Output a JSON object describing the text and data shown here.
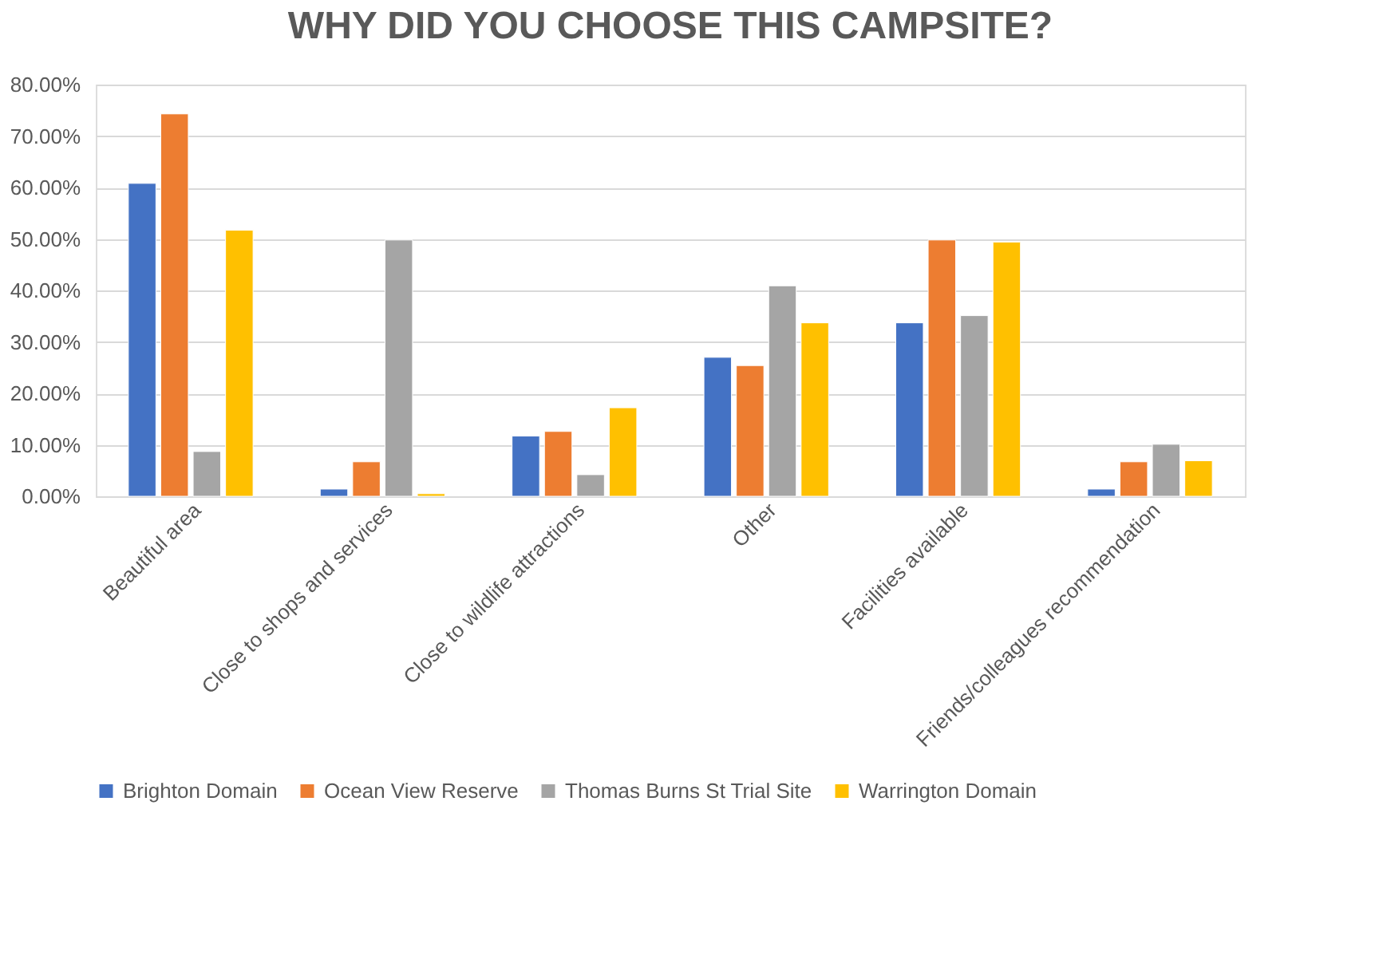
{
  "chart_data": {
    "type": "bar",
    "title": "WHY DID YOU CHOOSE THIS CAMPSITE?",
    "categories": [
      "Beautiful area",
      "Close to shops and services",
      "Close to wildlife attractions",
      "Other",
      "Facilities available",
      "Friends/colleagues recommendation"
    ],
    "series": [
      {
        "name": "Brighton Domain",
        "color": "#4472c4",
        "values": [
          60.8,
          1.4,
          11.7,
          27.0,
          33.7,
          1.4
        ]
      },
      {
        "name": "Ocean View Reserve",
        "color": "#ed7d31",
        "values": [
          74.3,
          6.7,
          12.6,
          25.4,
          49.8,
          6.7
        ]
      },
      {
        "name": "Thomas Burns St Trial Site",
        "color": "#a5a5a5",
        "values": [
          8.7,
          49.8,
          4.2,
          40.9,
          35.1,
          10.1
        ]
      },
      {
        "name": "Warrington Domain",
        "color": "#ffc000",
        "values": [
          51.7,
          0.5,
          17.2,
          33.7,
          49.4,
          6.9
        ]
      }
    ],
    "ylim": [
      0,
      80
    ],
    "yticks": [
      {
        "value": 0,
        "label": "0.00%"
      },
      {
        "value": 10,
        "label": "10.00%"
      },
      {
        "value": 20,
        "label": "20.00%"
      },
      {
        "value": 30,
        "label": "30.00%"
      },
      {
        "value": 40,
        "label": "40.00%"
      },
      {
        "value": 50,
        "label": "50.00%"
      },
      {
        "value": 60,
        "label": "60.00%"
      },
      {
        "value": 70,
        "label": "70.00%"
      },
      {
        "value": 80,
        "label": "80.00%"
      }
    ],
    "grid": "y",
    "legend": "bottom"
  }
}
